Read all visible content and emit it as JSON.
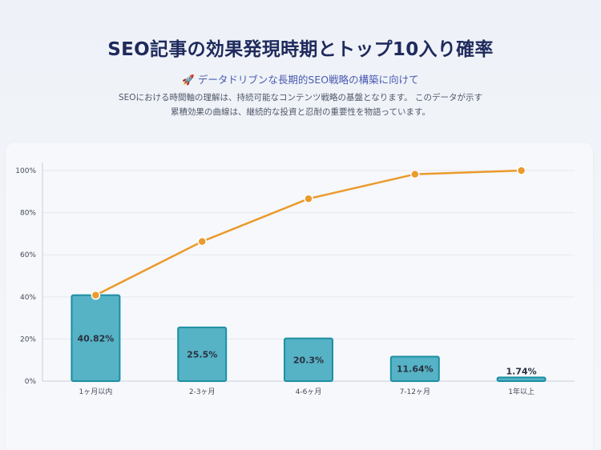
{
  "header": {
    "title": "SEO記事の効果発現時期とトップ10入り確率",
    "subtitle": "🚀 データドリブンな長期的SEO戦略の構築に向けて",
    "description_line1": "SEOにおける時間軸の理解は、持続可能なコンテンツ戦略の基盤となります。 このデータが示す",
    "description_line2": "累積効果の曲線は、継続的な投資と忍耐の重要性を物語っています。"
  },
  "colors": {
    "bar_fill": "#56b2c5",
    "bar_stroke": "#1d8fa3",
    "line": "#eb9a2c",
    "marker": "#eb9a2c",
    "grid": "#e6e9ef"
  },
  "chart_data": {
    "type": "bar",
    "categories": [
      "1ヶ月以内",
      "2-3ヶ月",
      "4-6ヶ月",
      "7-12ヶ月",
      "1年以上"
    ],
    "series": [
      {
        "type": "bar",
        "values": [
          40.82,
          25.5,
          20.3,
          11.64,
          1.74
        ],
        "labels": [
          "40.82%",
          "25.5%",
          "20.3%",
          "11.64%",
          "1.74%"
        ]
      },
      {
        "type": "line",
        "values": [
          40.82,
          66.32,
          86.62,
          98.26,
          100
        ]
      }
    ],
    "yticks": [
      "0%",
      "20%",
      "40%",
      "60%",
      "80%",
      "100%"
    ],
    "ylim": [
      0,
      100
    ],
    "grid": true
  }
}
